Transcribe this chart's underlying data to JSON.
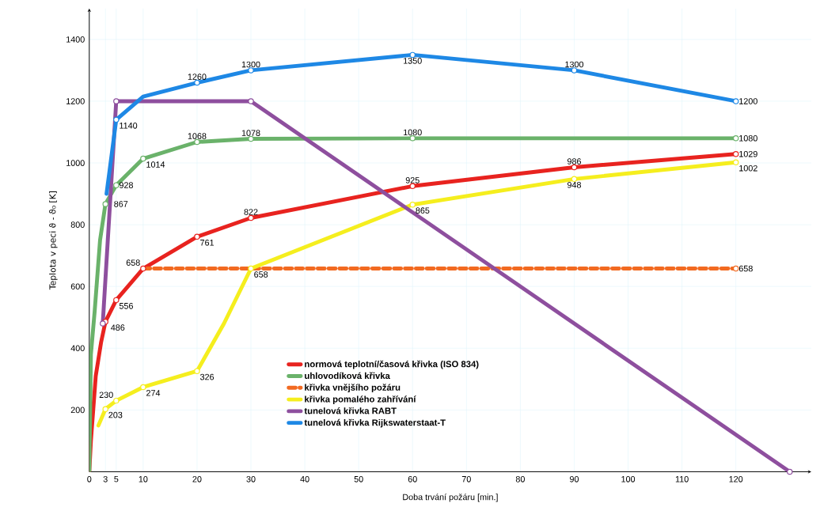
{
  "chart_data": {
    "type": "line",
    "xlabel": "Doba trvání požáru [min.]",
    "ylabel": "Teplota v peci ϑ - ϑ₀ [K]",
    "xlim": [
      0,
      134
    ],
    "ylim": [
      0,
      1500
    ],
    "xticks": [
      0,
      3,
      5,
      10,
      20,
      30,
      40,
      50,
      60,
      70,
      80,
      90,
      100,
      110,
      120
    ],
    "yticks": [
      200,
      400,
      600,
      800,
      1000,
      1200,
      1400
    ],
    "grid": true,
    "legend": "bottom",
    "marker": "circle",
    "series": [
      {
        "name": "normová teplotní/časová křivka (ISO 834)",
        "color": "#e8231f",
        "x": [
          0,
          0.3,
          1.2,
          2.2,
          3,
          5,
          10,
          20,
          30,
          60,
          90,
          120
        ],
        "values": [
          0,
          100,
          310,
          420,
          486,
          556,
          658,
          761,
          822,
          925,
          986,
          1029
        ],
        "value_labels": [
          null,
          null,
          null,
          null,
          "486",
          "556",
          "658",
          "761",
          "822",
          "925",
          "986",
          "1029"
        ]
      },
      {
        "name": "uhlovodíková křivka",
        "color": "#6ab26a",
        "x": [
          0,
          0.3,
          1,
          2,
          3,
          5,
          10,
          20,
          30,
          60,
          120
        ],
        "values": [
          0,
          380,
          520,
          750,
          867,
          928,
          1014,
          1068,
          1078,
          1080,
          1080
        ],
        "value_labels": [
          null,
          null,
          null,
          null,
          "867",
          "928",
          "1014",
          "1068",
          "1078",
          "1080",
          "1080"
        ]
      },
      {
        "name": "křivka vnějšího požáru",
        "color": "#f26a21",
        "line_style": "dashed",
        "x": [
          10,
          120
        ],
        "values": [
          658,
          658
        ],
        "value_labels": [
          null,
          "658"
        ]
      },
      {
        "name": "křivka pomalého zahřívání",
        "color": "#f5ee1e",
        "x": [
          1.7,
          3,
          5,
          10,
          20,
          25,
          30,
          60,
          90,
          120
        ],
        "values": [
          150,
          203,
          230,
          274,
          326,
          480,
          658,
          865,
          948,
          1002
        ],
        "value_labels": [
          null,
          "203",
          "230",
          "274",
          "326",
          null,
          "658",
          "865",
          "948",
          "1002"
        ]
      },
      {
        "name": "tunelová křivka RABT",
        "color": "#8e4f9e",
        "x": [
          2.5,
          5,
          30,
          130
        ],
        "values": [
          480,
          1200,
          1200,
          0
        ]
      },
      {
        "name": "tunelová křivka Rijkswaterstaat-T",
        "color": "#1e88e5",
        "x": [
          3.2,
          5,
          10,
          20,
          30,
          60,
          90,
          120
        ],
        "values": [
          900,
          1140,
          1215,
          1260,
          1300,
          1350,
          1300,
          1200
        ],
        "value_labels": [
          null,
          "1140",
          null,
          "1260",
          "1300",
          "1350",
          "1300",
          "1200"
        ]
      }
    ]
  }
}
